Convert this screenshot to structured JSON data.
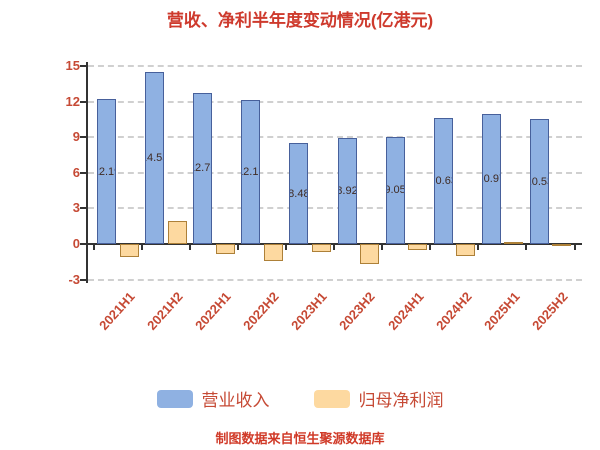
{
  "title": "营收、净利半年度变动情况(亿港元)",
  "footer": "制图数据来自恒生聚源数据库",
  "legend": [
    {
      "label": "营业收入",
      "color": "#8fb1e2",
      "border": "#47609b"
    },
    {
      "label": "归母净利润",
      "color": "#fdd9a0",
      "border": "#ad8038"
    }
  ],
  "chart_data": {
    "type": "bar",
    "title": "营收、净利半年度变动情况(亿港元)",
    "unit": "亿港元",
    "categories": [
      "2021H1",
      "2021H2",
      "2022H1",
      "2022H2",
      "2023H1",
      "2023H2",
      "2024H1",
      "2024H2",
      "2025H1",
      "2025H2"
    ],
    "series": [
      {
        "name": "营业收入",
        "color": "#8fb1e2",
        "values": [
          12.19,
          14.53,
          12.76,
          12.16,
          8.48,
          8.92,
          9.05,
          10.63,
          10.97,
          10.53
        ],
        "labels_shown": true
      },
      {
        "name": "归母净利润",
        "color": "#fdd9a0",
        "values": [
          -1.1,
          1.97,
          -0.85,
          -1.45,
          -0.7,
          -1.7,
          -0.5,
          -1.0,
          0.2,
          -0.15
        ],
        "labels_shown": false
      }
    ],
    "ylim": [
      -3,
      15
    ],
    "yticks": [
      15,
      12,
      9,
      6,
      3,
      0,
      -3
    ],
    "grid": "dashed-horizontal",
    "legend_position": "bottom"
  },
  "colors": {
    "background": "#ffffff",
    "title_text": "#ce3a2d",
    "axis_text": "#c64a35",
    "axis_line": "#333333",
    "gridline": "#d0d0d0",
    "bar_value_text": "#3f2b24",
    "footer_text": "#d03a28"
  }
}
